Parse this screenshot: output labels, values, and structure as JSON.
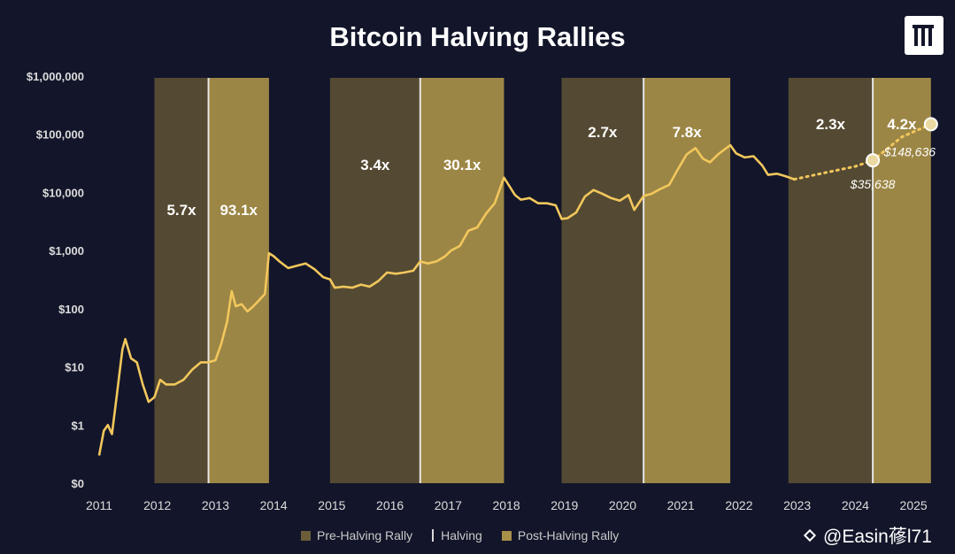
{
  "chart_data": {
    "type": "line",
    "title": "Bitcoin Halving Rallies",
    "y_scale": "log",
    "y_ticks": [
      {
        "value": 0.1,
        "label": "$0"
      },
      {
        "value": 1,
        "label": "$1"
      },
      {
        "value": 10,
        "label": "$10"
      },
      {
        "value": 100,
        "label": "$100"
      },
      {
        "value": 1000,
        "label": "$1,000"
      },
      {
        "value": 10000,
        "label": "$10,000"
      },
      {
        "value": 100000,
        "label": "$100,000"
      },
      {
        "value": 1000000,
        "label": "$1,000,000"
      }
    ],
    "x_ticks": [
      "2011",
      "2012",
      "2013",
      "2014",
      "2015",
      "2016",
      "2017",
      "2018",
      "2019",
      "2020",
      "2021",
      "2022",
      "2023",
      "2024",
      "2025"
    ],
    "x_range": [
      2011,
      2025.5
    ],
    "bands": [
      {
        "kind": "pre",
        "start": 2011.95,
        "end": 2012.88,
        "multiplier": "5.7x",
        "label_y": 5000
      },
      {
        "kind": "post",
        "start": 2012.88,
        "end": 2013.92,
        "multiplier": "93.1x",
        "label_y": 5000
      },
      {
        "kind": "pre",
        "start": 2014.97,
        "end": 2016.52,
        "multiplier": "3.4x",
        "label_y": 30000
      },
      {
        "kind": "post",
        "start": 2016.52,
        "end": 2017.96,
        "multiplier": "30.1x",
        "label_y": 30000
      },
      {
        "kind": "pre",
        "start": 2018.95,
        "end": 2020.36,
        "multiplier": "2.7x",
        "label_y": 110000
      },
      {
        "kind": "post",
        "start": 2020.36,
        "end": 2021.85,
        "multiplier": "7.8x",
        "label_y": 110000
      },
      {
        "kind": "pre",
        "start": 2022.85,
        "end": 2024.3,
        "multiplier": "2.3x",
        "label_y": 150000
      },
      {
        "kind": "post",
        "start": 2024.3,
        "end": 2025.3,
        "multiplier": "4.2x",
        "label_y": 150000
      }
    ],
    "halvings": [
      2012.88,
      2016.52,
      2020.36,
      2024.3
    ],
    "series": [
      {
        "values": [
          [
            2011.0,
            0.3
          ],
          [
            2011.08,
            0.8
          ],
          [
            2011.15,
            1.0
          ],
          [
            2011.22,
            0.7
          ],
          [
            2011.3,
            3
          ],
          [
            2011.4,
            20
          ],
          [
            2011.45,
            30
          ],
          [
            2011.55,
            14
          ],
          [
            2011.65,
            12
          ],
          [
            2011.75,
            5
          ],
          [
            2011.85,
            2.5
          ],
          [
            2011.95,
            3
          ],
          [
            2012.05,
            6
          ],
          [
            2012.15,
            5
          ],
          [
            2012.3,
            5
          ],
          [
            2012.45,
            6
          ],
          [
            2012.6,
            9
          ],
          [
            2012.75,
            12
          ],
          [
            2012.88,
            12
          ],
          [
            2013.0,
            13
          ],
          [
            2013.1,
            25
          ],
          [
            2013.2,
            60
          ],
          [
            2013.28,
            200
          ],
          [
            2013.35,
            110
          ],
          [
            2013.45,
            120
          ],
          [
            2013.55,
            90
          ],
          [
            2013.65,
            110
          ],
          [
            2013.75,
            140
          ],
          [
            2013.85,
            180
          ],
          [
            2013.92,
            900
          ],
          [
            2014.0,
            800
          ],
          [
            2014.1,
            650
          ],
          [
            2014.25,
            500
          ],
          [
            2014.4,
            550
          ],
          [
            2014.55,
            600
          ],
          [
            2014.7,
            480
          ],
          [
            2014.85,
            350
          ],
          [
            2014.97,
            320
          ],
          [
            2015.05,
            230
          ],
          [
            2015.2,
            240
          ],
          [
            2015.35,
            230
          ],
          [
            2015.5,
            260
          ],
          [
            2015.65,
            240
          ],
          [
            2015.8,
            300
          ],
          [
            2015.95,
            420
          ],
          [
            2016.1,
            400
          ],
          [
            2016.25,
            420
          ],
          [
            2016.4,
            450
          ],
          [
            2016.52,
            650
          ],
          [
            2016.65,
            600
          ],
          [
            2016.8,
            650
          ],
          [
            2016.95,
            800
          ],
          [
            2017.05,
            1000
          ],
          [
            2017.2,
            1200
          ],
          [
            2017.35,
            2200
          ],
          [
            2017.5,
            2500
          ],
          [
            2017.65,
            4300
          ],
          [
            2017.8,
            6500
          ],
          [
            2017.96,
            18000
          ],
          [
            2018.05,
            13000
          ],
          [
            2018.15,
            9000
          ],
          [
            2018.25,
            7500
          ],
          [
            2018.4,
            8000
          ],
          [
            2018.55,
            6500
          ],
          [
            2018.7,
            6500
          ],
          [
            2018.85,
            6000
          ],
          [
            2018.95,
            3500
          ],
          [
            2019.05,
            3600
          ],
          [
            2019.2,
            4500
          ],
          [
            2019.35,
            8500
          ],
          [
            2019.5,
            11000
          ],
          [
            2019.65,
            9500
          ],
          [
            2019.8,
            8000
          ],
          [
            2019.95,
            7200
          ],
          [
            2020.1,
            9000
          ],
          [
            2020.2,
            5000
          ],
          [
            2020.36,
            8700
          ],
          [
            2020.5,
            9500
          ],
          [
            2020.65,
            11500
          ],
          [
            2020.8,
            13500
          ],
          [
            2020.95,
            25000
          ],
          [
            2021.1,
            45000
          ],
          [
            2021.25,
            58000
          ],
          [
            2021.38,
            38000
          ],
          [
            2021.5,
            33000
          ],
          [
            2021.65,
            46000
          ],
          [
            2021.85,
            65000
          ],
          [
            2021.95,
            47000
          ],
          [
            2022.1,
            40000
          ],
          [
            2022.25,
            42000
          ],
          [
            2022.4,
            29000
          ],
          [
            2022.5,
            20000
          ],
          [
            2022.65,
            21000
          ],
          [
            2022.8,
            19000
          ],
          [
            2022.95,
            16800
          ]
        ]
      }
    ],
    "projection": [
      [
        2022.95,
        16800
      ],
      [
        2023.5,
        22000
      ],
      [
        2024.0,
        28000
      ],
      [
        2024.3,
        35638
      ],
      [
        2024.8,
        90000
      ],
      [
        2025.3,
        148636
      ]
    ],
    "projection_points": [
      {
        "x": 2024.3,
        "y": 35638,
        "label": "$35,638"
      },
      {
        "x": 2025.3,
        "y": 148636,
        "label": "$148,636"
      }
    ],
    "legend": [
      "Pre-Halving Rally",
      "Halving",
      "Post-Halving Rally"
    ],
    "colors": {
      "background": "#13162a",
      "pre_band": "#5a4e33",
      "post_band": "#a89048",
      "line": "#f2c75c",
      "halving_line": "#e6e6e6",
      "text": "#ffffff",
      "axis_text": "#dcdcdc"
    }
  },
  "watermark": {
    "text": "@Easin蓚l71",
    "icon": "binance-square-icon"
  },
  "logo": {
    "icon": "pantera-logo-icon"
  }
}
